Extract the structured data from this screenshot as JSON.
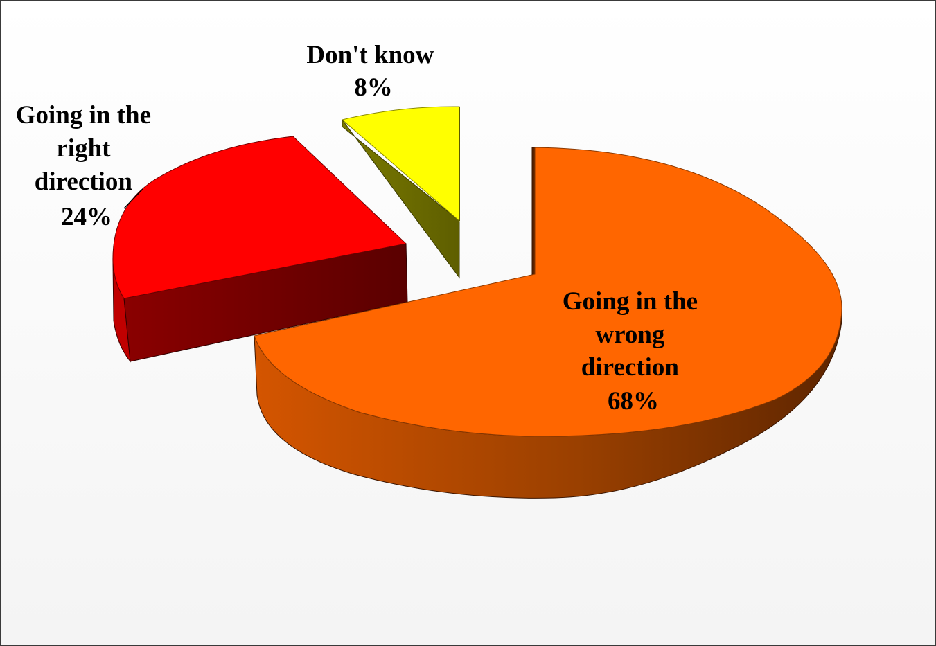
{
  "chart_data": {
    "type": "pie",
    "style": "3d-exploded",
    "title": "",
    "slices": [
      {
        "label": "Going in the wrong direction",
        "value": 68,
        "value_label": "68%",
        "color": "#ff6600",
        "side_color": "#c85200",
        "label_lines": [
          "Going in the",
          "wrong",
          "direction",
          "68%"
        ]
      },
      {
        "label": "Going in the right direction",
        "value": 24,
        "value_label": "24%",
        "color": "#ff0000",
        "side_color": "#6e0000",
        "label_lines": [
          "Going in the",
          "right",
          "direction",
          "24%"
        ]
      },
      {
        "label": "Don't know",
        "value": 8,
        "value_label": "8%",
        "color": "#ffff00",
        "side_color": "#6b6b00",
        "label_lines": [
          "Don't know",
          "8%"
        ]
      }
    ],
    "legend": "none"
  }
}
